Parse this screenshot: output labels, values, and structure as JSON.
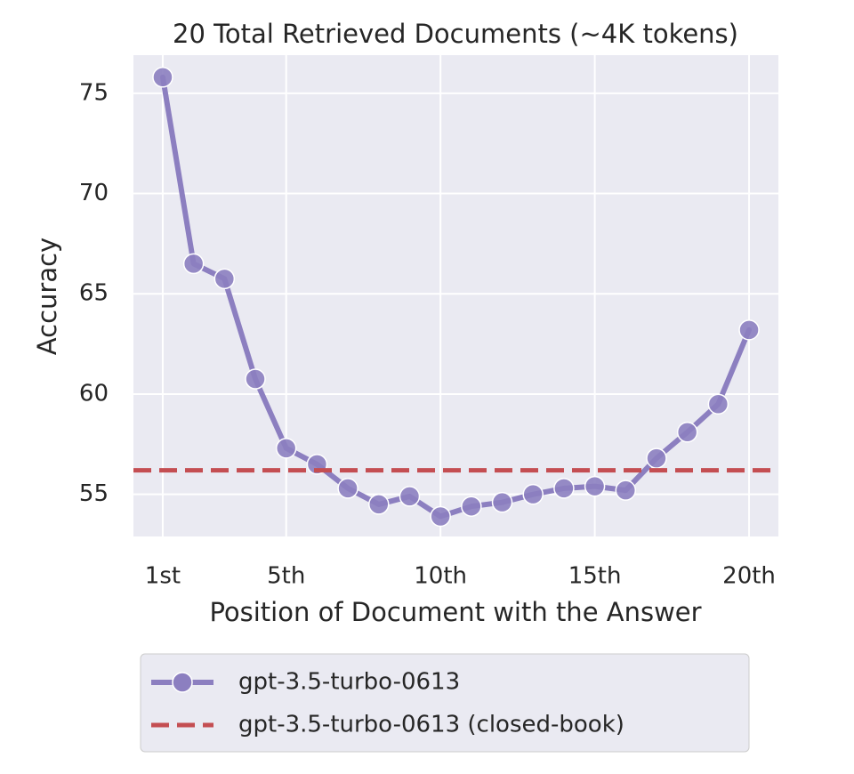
{
  "chart_data": {
    "type": "line",
    "title": "20 Total Retrieved Documents (~4K tokens)",
    "x_label": "Position of Document with the Answer",
    "y_label": "Accuracy",
    "x": [
      1,
      2,
      3,
      4,
      5,
      6,
      7,
      8,
      9,
      10,
      11,
      12,
      13,
      14,
      15,
      16,
      17,
      18,
      19,
      20
    ],
    "series": [
      {
        "name": "gpt-3.5-turbo-0613",
        "color": "#8c7fc0",
        "values": [
          75.8,
          66.5,
          65.75,
          60.75,
          57.3,
          56.5,
          55.3,
          54.5,
          54.9,
          53.9,
          54.4,
          54.6,
          55.0,
          55.3,
          55.4,
          55.2,
          56.8,
          58.1,
          59.5,
          63.2
        ]
      }
    ],
    "reference_lines": [
      {
        "name": "gpt-3.5-turbo-0613 (closed-book)",
        "color": "#c44e52",
        "value": 56.2
      }
    ],
    "xlim": [
      0.05,
      20.95
    ],
    "ylim": [
      52.9,
      76.9
    ],
    "xticks": [
      {
        "value": 1,
        "label": "1st"
      },
      {
        "value": 5,
        "label": "5th"
      },
      {
        "value": 10,
        "label": "10th"
      },
      {
        "value": 15,
        "label": "15th"
      },
      {
        "value": 20,
        "label": "20th"
      }
    ],
    "yticks": [
      55,
      60,
      65,
      70,
      75
    ],
    "grid": true,
    "legend_position": "bottom"
  }
}
